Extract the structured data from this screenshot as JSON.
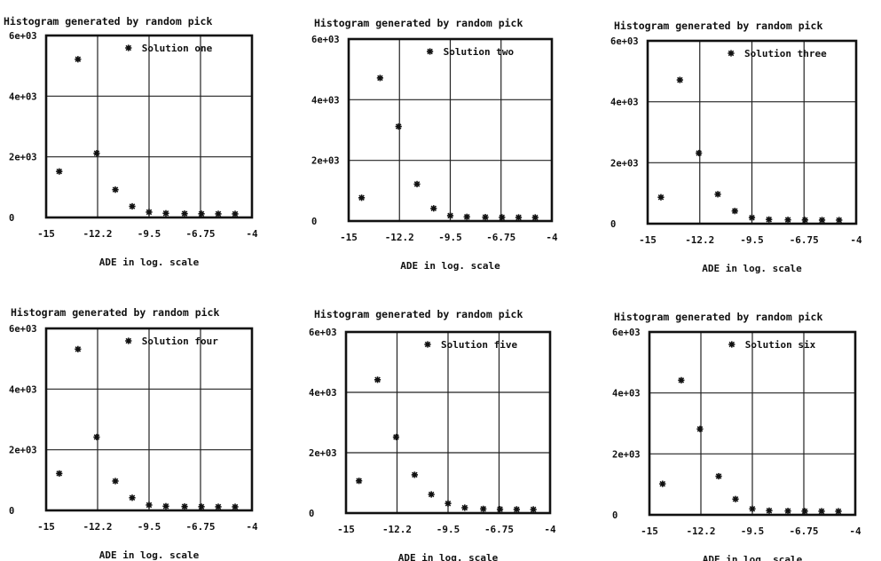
{
  "chart_data": [
    {
      "type": "scatter",
      "title": "Histogram generated by random pick",
      "xlabel": "ADE in log. scale",
      "ylabel": "",
      "xlim": [
        -15,
        -4
      ],
      "ylim": [
        0,
        6000
      ],
      "grid": true,
      "legend_position": "top-right",
      "x_ticks": [
        "-15",
        "-12.2",
        "-9.5",
        "-6.75",
        "-4"
      ],
      "y_ticks": [
        "0",
        "2e+03",
        "4e+03",
        "6e+03"
      ],
      "series": [
        {
          "name": "Solution one",
          "marker": "*",
          "x": [
            -14.3,
            -13.3,
            -12.3,
            -11.3,
            -10.4,
            -9.5,
            -8.6,
            -7.6,
            -6.7,
            -5.8,
            -4.9
          ],
          "y": [
            1400,
            5100,
            2000,
            800,
            250,
            60,
            20,
            10,
            5,
            2,
            1
          ]
        }
      ]
    },
    {
      "type": "scatter",
      "title": "Histogram generated by random pick",
      "xlabel": "ADE in log. scale",
      "ylabel": "",
      "xlim": [
        -15,
        -4
      ],
      "ylim": [
        0,
        6000
      ],
      "grid": true,
      "legend_position": "top-right",
      "x_ticks": [
        "-15",
        "-12.2",
        "-9.5",
        "-6.75",
        "-4"
      ],
      "y_ticks": [
        "0",
        "2e+03",
        "4e+03",
        "6e+03"
      ],
      "series": [
        {
          "name": "Solution two",
          "marker": "*",
          "x": [
            -14.3,
            -13.3,
            -12.3,
            -11.3,
            -10.4,
            -9.5,
            -8.6,
            -7.6,
            -6.7,
            -5.8,
            -4.9
          ],
          "y": [
            650,
            4600,
            3000,
            1100,
            300,
            60,
            20,
            10,
            5,
            2,
            1
          ]
        }
      ]
    },
    {
      "type": "scatter",
      "title": "Histogram generated by random pick",
      "xlabel": "ADE in log. scale",
      "ylabel": "",
      "xlim": [
        -15,
        -4
      ],
      "ylim": [
        0,
        6000
      ],
      "grid": true,
      "legend_position": "top-right",
      "x_ticks": [
        "-15",
        "-12.2",
        "-9.5",
        "-6.75",
        "-4"
      ],
      "y_ticks": [
        "0",
        "2e+03",
        "4e+03",
        "6e+03"
      ],
      "series": [
        {
          "name": "Solution three",
          "marker": "*",
          "x": [
            -14.3,
            -13.3,
            -12.3,
            -11.3,
            -10.4,
            -9.5,
            -8.6,
            -7.6,
            -6.7,
            -5.8,
            -4.9
          ],
          "y": [
            750,
            4600,
            2200,
            850,
            300,
            80,
            20,
            10,
            5,
            2,
            1
          ]
        }
      ]
    },
    {
      "type": "scatter",
      "title": "Histogram generated by random pick",
      "xlabel": "ADE in log. scale",
      "ylabel": "",
      "xlim": [
        -15,
        -4
      ],
      "ylim": [
        0,
        6000
      ],
      "grid": true,
      "legend_position": "top-right",
      "x_ticks": [
        "-15",
        "-12.2",
        "-9.5",
        "-6.75",
        "-4"
      ],
      "y_ticks": [
        "0",
        "2e+03",
        "4e+03",
        "6e+03"
      ],
      "series": [
        {
          "name": "Solution four",
          "marker": "*",
          "x": [
            -14.3,
            -13.3,
            -12.3,
            -11.3,
            -10.4,
            -9.5,
            -8.6,
            -7.6,
            -6.7,
            -5.8,
            -4.9
          ],
          "y": [
            1100,
            5200,
            2300,
            850,
            300,
            60,
            20,
            10,
            5,
            2,
            1
          ]
        }
      ]
    },
    {
      "type": "scatter",
      "title": "Histogram generated by random pick",
      "xlabel": "ADE in log. scale",
      "ylabel": "",
      "xlim": [
        -15,
        -4
      ],
      "ylim": [
        0,
        6000
      ],
      "grid": true,
      "legend_position": "top-right",
      "x_ticks": [
        "-15",
        "-12.2",
        "-9.5",
        "-6.75",
        "-4"
      ],
      "y_ticks": [
        "0",
        "2e+03",
        "4e+03",
        "6e+03"
      ],
      "series": [
        {
          "name": "Solution five",
          "marker": "*",
          "x": [
            -14.3,
            -13.3,
            -12.3,
            -11.3,
            -10.4,
            -9.5,
            -8.6,
            -7.6,
            -6.7,
            -5.8,
            -4.9
          ],
          "y": [
            950,
            4300,
            2400,
            1150,
            500,
            200,
            60,
            20,
            10,
            5,
            2
          ]
        }
      ]
    },
    {
      "type": "scatter",
      "title": "Histogram generated by random pick",
      "xlabel": "ADE in log. scale",
      "ylabel": "",
      "xlim": [
        -15,
        -4
      ],
      "ylim": [
        0,
        6000
      ],
      "grid": true,
      "legend_position": "top-right",
      "x_ticks": [
        "-15",
        "-12.2",
        "-9.5",
        "-6.75",
        "-4"
      ],
      "y_ticks": [
        "0",
        "2e+03",
        "4e+03",
        "6e+03"
      ],
      "series": [
        {
          "name": "Solution six",
          "marker": "*",
          "x": [
            -14.3,
            -13.3,
            -12.3,
            -11.3,
            -10.4,
            -9.5,
            -8.6,
            -7.6,
            -6.7,
            -5.8,
            -4.9
          ],
          "y": [
            900,
            4300,
            2700,
            1150,
            400,
            80,
            20,
            10,
            5,
            2,
            1
          ]
        }
      ]
    }
  ]
}
